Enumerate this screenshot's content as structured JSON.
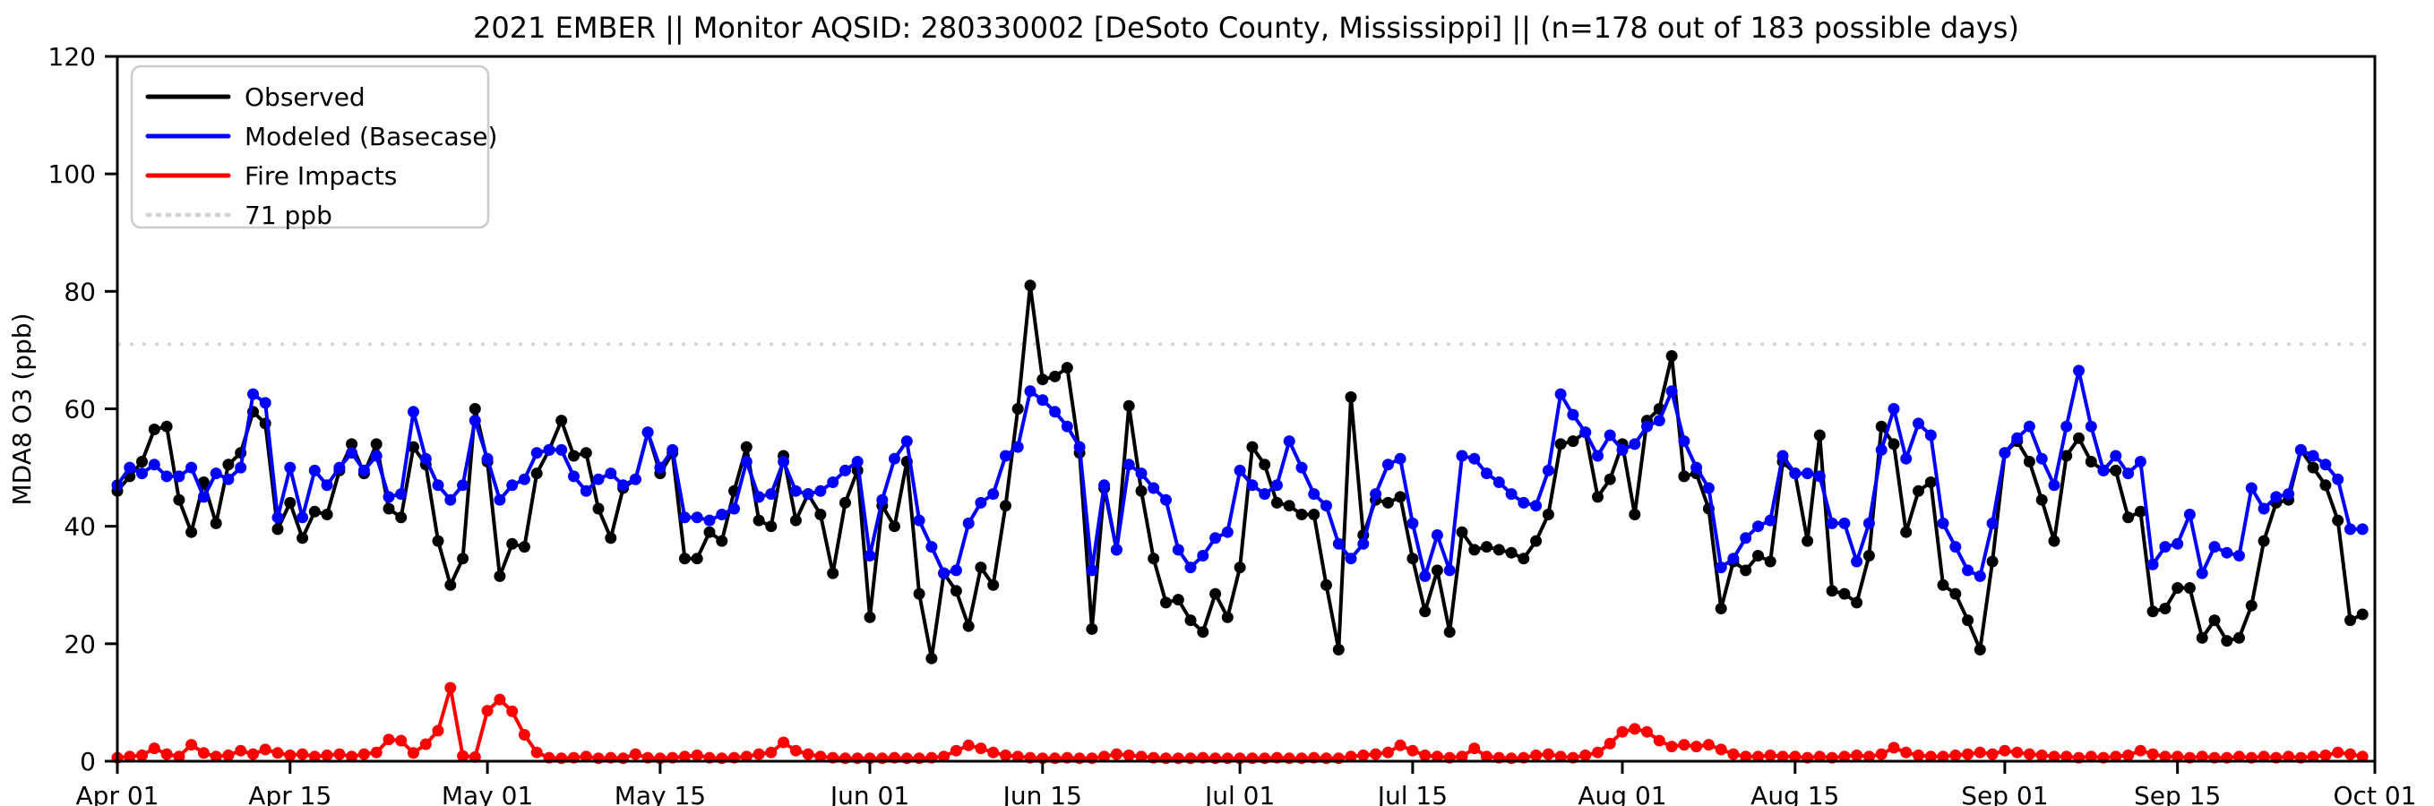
{
  "chart_data": {
    "type": "line",
    "title": "2021 EMBER || Monitor AQSID: 280330002 [DeSoto County, Mississippi] || (n=178 out of 183 possible days)",
    "xlabel": "",
    "ylabel": "MDA8 O3 (ppb)",
    "ylim": [
      0,
      120
    ],
    "yticks": [
      0,
      20,
      40,
      60,
      80,
      100,
      120
    ],
    "x_start_label": "Apr 01",
    "x_unit": "day",
    "n_days": 183,
    "x_ticks": [
      {
        "day": 0,
        "label": "Apr 01"
      },
      {
        "day": 14,
        "label": "Apr 15"
      },
      {
        "day": 30,
        "label": "May 01"
      },
      {
        "day": 44,
        "label": "May 15"
      },
      {
        "day": 61,
        "label": "Jun 01"
      },
      {
        "day": 75,
        "label": "Jun 15"
      },
      {
        "day": 91,
        "label": "Jul 01"
      },
      {
        "day": 105,
        "label": "Jul 15"
      },
      {
        "day": 122,
        "label": "Aug 01"
      },
      {
        "day": 136,
        "label": "Aug 15"
      },
      {
        "day": 153,
        "label": "Sep 01"
      },
      {
        "day": 167,
        "label": "Sep 15"
      },
      {
        "day": 183,
        "label": "Oct 01"
      }
    ],
    "threshold": {
      "label": "71 ppb",
      "value": 71,
      "color": "#d4d4d4",
      "style": "dotted"
    },
    "grid": false,
    "legend_position": "upper left",
    "background": "#ffffff",
    "series": [
      {
        "name": "Observed",
        "color": "#000000",
        "style": "solid-markers",
        "values": [
          46,
          48.5,
          51,
          56.5,
          57,
          44.5,
          39,
          47.5,
          40.5,
          50.5,
          52.5,
          59.5,
          57.5,
          39.5,
          44,
          38,
          42.5,
          42,
          49.5,
          54,
          49,
          54,
          43,
          41.5,
          53.5,
          50.5,
          37.5,
          30,
          34.5,
          60,
          51,
          31.5,
          37,
          36.5,
          49,
          53,
          58,
          52,
          52.5,
          43,
          38,
          46.5,
          48,
          56,
          49,
          52.5,
          34.5,
          34.5,
          39,
          37.5,
          46,
          53.5,
          41,
          40,
          52,
          41,
          45.5,
          42,
          32,
          44,
          49.5,
          24.5,
          43.5,
          40,
          51,
          28.5,
          17.5,
          32,
          29,
          23,
          33,
          30,
          43.5,
          60,
          81,
          65,
          65.5,
          67,
          52.5,
          22.5,
          46.5,
          36,
          60.5,
          46,
          34.5,
          27,
          27.5,
          24,
          22,
          28.5,
          24.5,
          33,
          53.5,
          50.5,
          44,
          43.5,
          42,
          42,
          30,
          19,
          62,
          38.5,
          44.5,
          44,
          45,
          34.5,
          25.5,
          32.5,
          22,
          39,
          36,
          36.5,
          36,
          35.5,
          34.5,
          37.5,
          42,
          54,
          54.5,
          56,
          45,
          48,
          54,
          42,
          58,
          60,
          69,
          48.5,
          49,
          43,
          26,
          34,
          32.5,
          35,
          34,
          51,
          49,
          37.5,
          55.5,
          29,
          28.5,
          27,
          35,
          57,
          54,
          39,
          46,
          47.5,
          30,
          28.5,
          24,
          19,
          34,
          52.5,
          54.5,
          51,
          44.5,
          37.5,
          52,
          55,
          51,
          49.5,
          49.5,
          41.5,
          42.5,
          25.5,
          26,
          29.5,
          29.5,
          21,
          24,
          20.5,
          21,
          26.5,
          37.5,
          44,
          44.5,
          53,
          50,
          47,
          41,
          24,
          25
        ]
      },
      {
        "name": "Modeled (Basecase)",
        "color": "#0000ff",
        "style": "solid-markers",
        "values": [
          47,
          50,
          49,
          50.5,
          48.5,
          48.5,
          50,
          45,
          49,
          48,
          50,
          62.5,
          61,
          41.5,
          50,
          41.5,
          49.5,
          47,
          50,
          52.5,
          49.5,
          52,
          45,
          45.5,
          59.5,
          51.5,
          47,
          44.5,
          47,
          58,
          51.5,
          44.5,
          47,
          48,
          52.5,
          53,
          53,
          48.5,
          46,
          48,
          49,
          47,
          48,
          56,
          50,
          53,
          41.5,
          41.5,
          41,
          42,
          43,
          51,
          45,
          45.5,
          51,
          46,
          45.5,
          46,
          47.5,
          49.5,
          51,
          35,
          44.5,
          51.5,
          54.5,
          41,
          36.5,
          32,
          32.5,
          40.5,
          44,
          45.5,
          52,
          53.5,
          63,
          61.5,
          59.5,
          57,
          53.5,
          32.5,
          47,
          36,
          50.5,
          49,
          46.5,
          44.5,
          36,
          33,
          35,
          38,
          39,
          49.5,
          47,
          45.5,
          47,
          54.5,
          50,
          45.5,
          43.5,
          37,
          34.5,
          37,
          45.5,
          50.5,
          51.5,
          40.5,
          31.5,
          38.5,
          32.5,
          52,
          51.5,
          49,
          47.5,
          45.5,
          44,
          43.5,
          49.5,
          62.5,
          59,
          56,
          52,
          55.5,
          53,
          54,
          57,
          58,
          63,
          54.5,
          50,
          46.5,
          33,
          34.5,
          38,
          40,
          41,
          52,
          49,
          49,
          48.5,
          40.5,
          40.5,
          34,
          40.5,
          53,
          60,
          51.5,
          57.5,
          55.5,
          40.5,
          36.5,
          32.5,
          31.5,
          40.5,
          52.5,
          55,
          57,
          51.5,
          47,
          57,
          66.5,
          57,
          49.5,
          52,
          49,
          51,
          33.5,
          36.5,
          37,
          42,
          32,
          36.5,
          35.5,
          35,
          46.5,
          43,
          45,
          45.5,
          53,
          52,
          50.5,
          48,
          39.5,
          39.5
        ]
      },
      {
        "name": "Fire Impacts",
        "color": "#ff0000",
        "style": "solid-markers",
        "values": [
          0.6,
          0.8,
          1,
          2.2,
          1.2,
          0.8,
          2.8,
          1.4,
          0.8,
          1,
          1.8,
          1.2,
          2,
          1.4,
          1,
          1.2,
          0.8,
          1,
          1.2,
          0.8,
          1.2,
          1.5,
          3.7,
          3.5,
          1.4,
          2.9,
          5.2,
          12.5,
          0.9,
          0.7,
          8.6,
          10.5,
          8.5,
          4.5,
          1.5,
          0.6,
          0.5,
          0.6,
          0.8,
          0.5,
          0.6,
          0.5,
          1.2,
          0.6,
          0.5,
          0.6,
          0.8,
          1,
          0.6,
          0.5,
          0.6,
          0.8,
          1.2,
          1.5,
          3.2,
          1.8,
          1.2,
          0.8,
          0.6,
          0.5,
          0.5,
          0.5,
          0.5,
          0.6,
          0.5,
          0.5,
          0.6,
          0.8,
          1.8,
          2.7,
          2.2,
          1.5,
          1,
          0.8,
          0.6,
          0.5,
          0.5,
          0.6,
          0.5,
          0.5,
          0.8,
          1.2,
          1,
          0.8,
          0.6,
          0.5,
          0.5,
          0.5,
          0.6,
          0.5,
          0.5,
          0.5,
          0.5,
          0.5,
          0.6,
          0.5,
          0.5,
          0.6,
          0.5,
          0.5,
          0.8,
          1,
          1.2,
          1.5,
          2.7,
          1.8,
          1,
          0.8,
          0.6,
          0.8,
          2.2,
          0.8,
          0.6,
          0.5,
          0.6,
          1,
          1.2,
          0.8,
          0.6,
          1,
          1.5,
          3,
          5,
          5.5,
          5,
          3.5,
          2.5,
          2.8,
          2.5,
          2.8,
          2,
          1.2,
          0.8,
          0.8,
          1,
          0.8,
          0.8,
          0.6,
          0.8,
          0.6,
          0.8,
          1,
          0.8,
          1.2,
          2.3,
          1.5,
          1,
          0.8,
          0.8,
          1,
          1.2,
          1.5,
          1.2,
          1.8,
          1.5,
          1.2,
          1,
          0.8,
          0.8,
          0.6,
          0.8,
          0.6,
          0.8,
          1,
          1.8,
          1.2,
          0.8,
          0.8,
          0.6,
          0.8,
          0.6,
          0.6,
          0.8,
          0.6,
          0.8,
          0.6,
          0.8,
          0.6,
          0.8,
          1,
          1.5,
          1.2,
          0.8
        ]
      }
    ],
    "legend_entries": [
      {
        "label": "Observed",
        "color": "#000000",
        "dash": ""
      },
      {
        "label": "Modeled (Basecase)",
        "color": "#0000ff",
        "dash": ""
      },
      {
        "label": "Fire Impacts",
        "color": "#ff0000",
        "dash": ""
      },
      {
        "label": "71 ppb",
        "color": "#d4d4d4",
        "dash": "2 9"
      }
    ]
  },
  "layout_note": "matplotlib-style daily time series, Apr 01 through Oct 01 2021"
}
